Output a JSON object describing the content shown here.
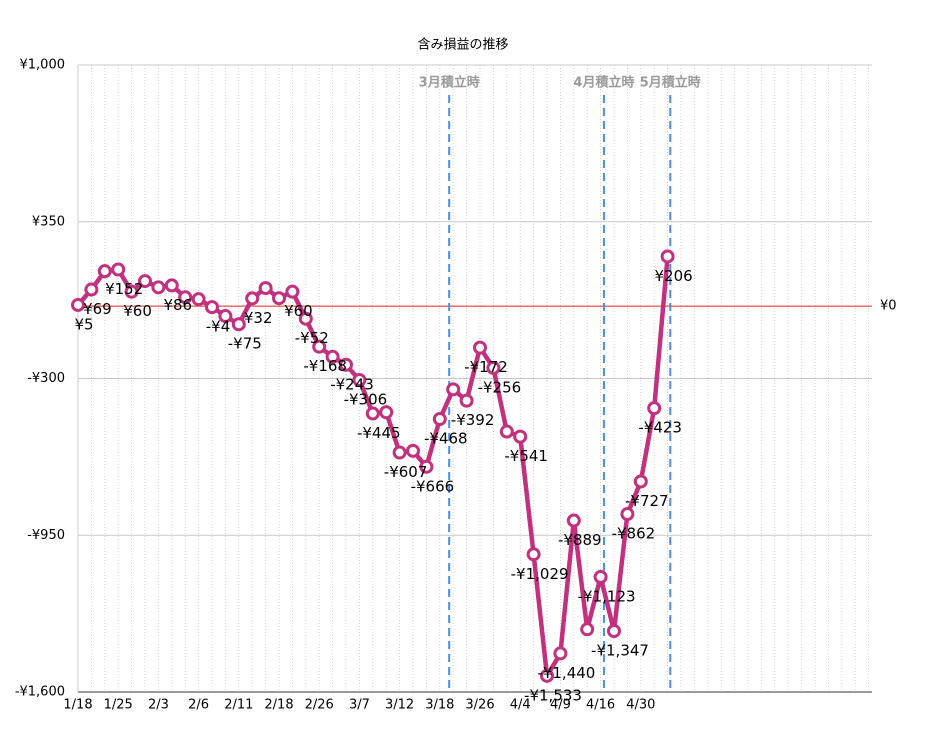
{
  "chart_data": {
    "type": "line",
    "title": "含み損益の推移",
    "categories": [
      "1/18",
      null,
      null,
      "1/25",
      null,
      null,
      "2/3",
      null,
      null,
      "2/6",
      null,
      null,
      "2/11",
      null,
      null,
      "2/18",
      null,
      null,
      "2/26",
      null,
      null,
      "3/7",
      null,
      null,
      "3/12",
      null,
      null,
      "3/18",
      null,
      null,
      "3/26",
      null,
      null,
      "4/4",
      null,
      null,
      "4/9",
      null,
      null,
      "4/16",
      null,
      null,
      "4/30",
      null,
      null,
      null,
      null,
      null,
      null,
      null,
      null,
      null,
      null,
      null,
      null,
      null,
      null,
      null,
      null,
      null
    ],
    "series": [
      {
        "color": "#c2307e",
        "values": [
          5,
          69,
          145,
          152,
          60,
          104,
          78,
          86,
          37,
          29,
          -4,
          -41,
          -75,
          32,
          75,
          33,
          60,
          -52,
          -168,
          -210,
          -243,
          -306,
          -445,
          -440,
          -607,
          -600,
          -666,
          -468,
          -345,
          -392,
          -172,
          -256,
          -520,
          -541,
          -1029,
          -1533,
          -1440,
          -889,
          -1340,
          -1123,
          -1347,
          -862,
          -727,
          -423,
          206,
          null,
          null,
          null,
          null,
          null,
          null,
          null,
          null,
          null,
          null,
          null,
          null,
          null,
          null,
          null
        ],
        "value_labels": [
          "¥5",
          "¥69",
          null,
          "¥152",
          "¥60",
          null,
          null,
          "¥86",
          null,
          null,
          "-¥4",
          null,
          "-¥75",
          "¥32",
          null,
          null,
          "¥60",
          "-¥52",
          "-¥168",
          null,
          "-¥243",
          "-¥306",
          "-¥445",
          null,
          "-¥607",
          null,
          "-¥666",
          "-¥468",
          null,
          "-¥392",
          "-¥172",
          "-¥256",
          null,
          "-¥541",
          "-¥1,029",
          "-¥1,533",
          "-¥1,440",
          "-¥889",
          null,
          "-¥1,123",
          "-¥1,347",
          "-¥862",
          "-¥727",
          "-¥423",
          "¥206",
          null,
          null,
          null,
          null,
          null,
          null,
          null,
          null,
          null,
          null,
          null,
          null,
          null,
          null,
          null
        ]
      }
    ],
    "ylim": [
      -1600,
      1000
    ],
    "yticks": [
      {
        "value": -1600,
        "label": "-¥1,600"
      },
      {
        "value": -950,
        "label": "-¥950"
      },
      {
        "value": -300,
        "label": "-¥300"
      },
      {
        "value": 350,
        "label": "¥350"
      },
      {
        "value": 1000,
        "label": "¥1,000"
      }
    ],
    "reference_line": {
      "value": 0,
      "label": "¥0",
      "color": "#e0281e"
    },
    "annotations": [
      {
        "text": "3月積立時",
        "x": 27.7
      },
      {
        "text": "4月積立時",
        "x": 39.25
      },
      {
        "text": "5月積立時",
        "x": 44.2
      }
    ],
    "annotation_color": "#4a8ee6",
    "grid": true
  }
}
